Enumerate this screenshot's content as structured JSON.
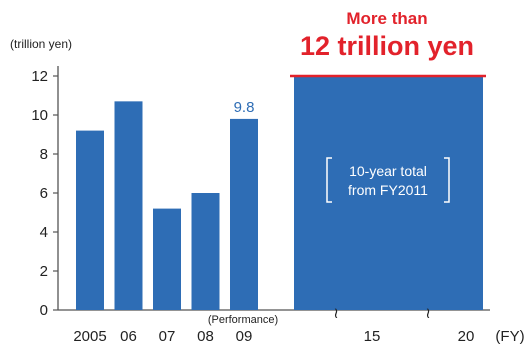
{
  "chart_data": {
    "type": "bar",
    "y_axis": {
      "label": "(trillion yen)",
      "ylim": [
        0,
        12
      ],
      "ticks": [
        "0",
        "2",
        "4",
        "6",
        "8",
        "10",
        "12"
      ]
    },
    "x_axis": {
      "unit": "(FY)",
      "performance_note": "(Performance)"
    },
    "categories": [
      "2005",
      "06",
      "07",
      "08",
      "09"
    ],
    "values": [
      9.2,
      10.7,
      5.2,
      6.0,
      9.8
    ],
    "value_label": {
      "category": "09",
      "text": "9.8"
    },
    "plan_block": {
      "start_fy": 2011,
      "end_fy": 2020,
      "value": 12,
      "tick_labels": [
        "15",
        "20"
      ],
      "break_marks": [
        "≀",
        "≀"
      ],
      "inner_label_line1": "10-year total",
      "inner_label_line2": "from FY2011",
      "headline_line1": "More than",
      "headline_line2": "12 trillion yen"
    },
    "colors": {
      "bar": "#2e6db5",
      "headline": "#e2222b",
      "plan_top_line": "#e2222b"
    }
  }
}
